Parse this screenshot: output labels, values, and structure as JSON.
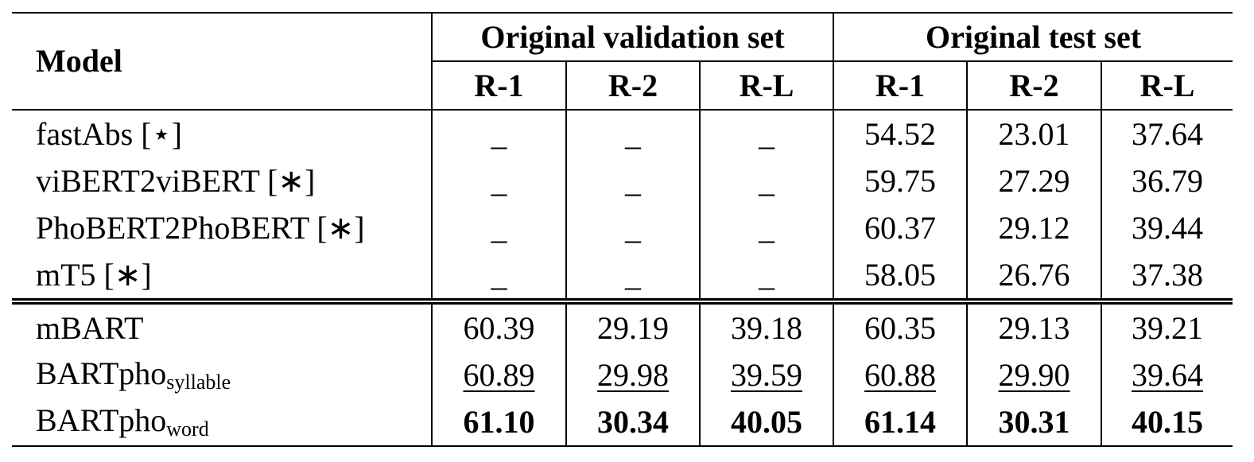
{
  "table": {
    "header": {
      "model": "Model",
      "groups": [
        "Original validation set",
        "Original test set"
      ],
      "metrics": [
        "R-1",
        "R-2",
        "R-L",
        "R-1",
        "R-2",
        "R-L"
      ]
    },
    "sections": [
      {
        "rows": [
          {
            "model": "fastAbs [⋆]",
            "cells": [
              "–",
              "–",
              "–",
              "54.52",
              "23.01",
              "37.64"
            ]
          },
          {
            "model": "viBERT2viBERT [∗]",
            "cells": [
              "–",
              "–",
              "–",
              "59.75",
              "27.29",
              "36.79"
            ]
          },
          {
            "model": "PhoBERT2PhoBERT [∗]",
            "cells": [
              "–",
              "–",
              "–",
              "60.37",
              "29.12",
              "39.44"
            ]
          },
          {
            "model": "mT5 [∗]",
            "cells": [
              "–",
              "–",
              "–",
              "58.05",
              "26.76",
              "37.38"
            ]
          }
        ]
      },
      {
        "rows": [
          {
            "model": "mBART",
            "cells": [
              "60.39",
              "29.19",
              "39.18",
              "60.35",
              "29.13",
              "39.21"
            ]
          },
          {
            "model": "BARTpho",
            "model_subscript": "syllable",
            "emphasis": "underline",
            "cells": [
              "60.89",
              "29.98",
              "39.59",
              "60.88",
              "29.90",
              "39.64"
            ]
          },
          {
            "model": "BARTpho",
            "model_subscript": "word",
            "emphasis": "bold",
            "cells": [
              "61.10",
              "30.34",
              "40.05",
              "61.14",
              "30.31",
              "40.15"
            ]
          }
        ]
      }
    ]
  }
}
